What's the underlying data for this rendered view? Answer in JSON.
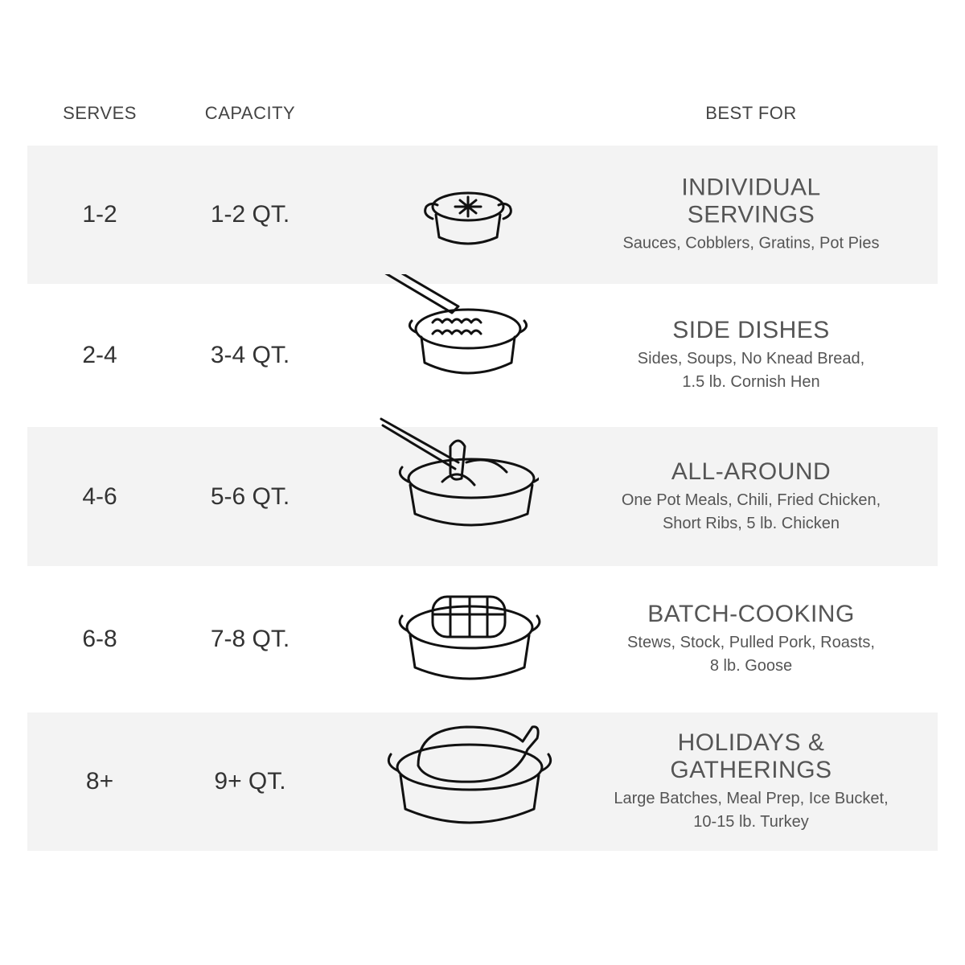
{
  "headers": {
    "serves": "SERVES",
    "capacity": "CAPACITY",
    "best_for": "BEST FOR"
  },
  "rows": [
    {
      "serves": "1-2",
      "capacity": "1-2 QT.",
      "title_lines": [
        "INDIVIDUAL",
        "SERVINGS"
      ],
      "desc_lines": [
        "Sauces, Cobblers, Gratins, Pot Pies"
      ],
      "icon": "pot-pie-icon"
    },
    {
      "serves": "2-4",
      "capacity": "3-4 QT.",
      "title_lines": [
        "SIDE DISHES"
      ],
      "desc_lines": [
        "Sides, Soups, No Knead Bread,",
        "1.5 lb. Cornish Hen"
      ],
      "icon": "pot-with-spoon-icon"
    },
    {
      "serves": "4-6",
      "capacity": "5-6 QT.",
      "title_lines": [
        "ALL-AROUND"
      ],
      "desc_lines": [
        "One Pot Meals, Chili, Fried Chicken,",
        "Short Ribs, 5 lb. Chicken"
      ],
      "icon": "pot-with-tongs-icon"
    },
    {
      "serves": "6-8",
      "capacity": "7-8 QT.",
      "title_lines": [
        "BATCH-COOKING"
      ],
      "desc_lines": [
        "Stews, Stock, Pulled Pork, Roasts,",
        "8 lb. Goose"
      ],
      "icon": "pot-with-roast-icon"
    },
    {
      "serves": "8+",
      "capacity": "9+ QT.",
      "title_lines": [
        "HOLIDAYS &",
        "GATHERINGS"
      ],
      "desc_lines": [
        "Large Batches, Meal Prep, Ice Bucket,",
        "10-15 lb. Turkey"
      ],
      "icon": "pot-with-turkey-icon"
    }
  ],
  "colors": {
    "row_shade": "#f3f3f3",
    "text": "#333333"
  }
}
